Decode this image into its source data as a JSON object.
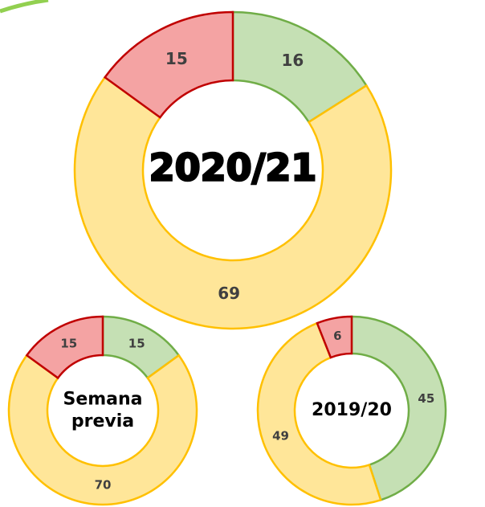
{
  "chart_data": [
    {
      "type": "donut",
      "title": "2020/21",
      "values": [
        16,
        69,
        15
      ],
      "colors": [
        "#c5e0b4",
        "#ffe699",
        "#f4a3a3"
      ],
      "edge_colors": [
        "#70ad47",
        "#ffc000",
        "#c00000"
      ]
    },
    {
      "type": "donut",
      "title": "Semana previa",
      "values": [
        15,
        70,
        15
      ],
      "colors": [
        "#c5e0b4",
        "#ffe699",
        "#f4a3a3"
      ],
      "edge_colors": [
        "#70ad47",
        "#ffc000",
        "#c00000"
      ]
    },
    {
      "type": "donut",
      "title": "2019/20",
      "values": [
        45,
        49,
        6
      ],
      "colors": [
        "#c5e0b4",
        "#ffe699",
        "#f4a3a3"
      ],
      "edge_colors": [
        "#70ad47",
        "#ffc000",
        "#c00000"
      ]
    }
  ]
}
